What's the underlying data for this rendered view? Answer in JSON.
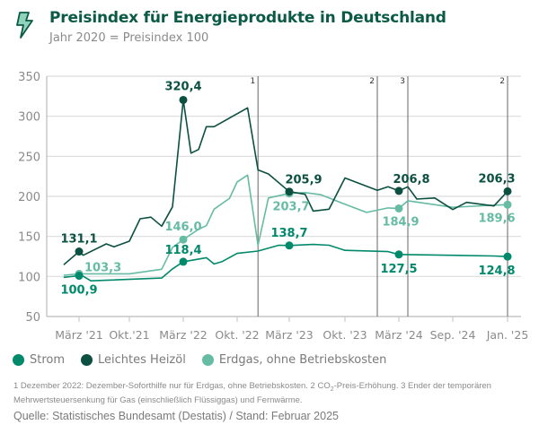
{
  "header": {
    "icon": "lightning-bolt-icon",
    "title": "Preisindex für Energieprodukte in Deutschland",
    "subtitle": "Jahr 2020 = Preisindex 100"
  },
  "colors": {
    "title": "#0b5a45",
    "strom": "#00896b",
    "heizoel": "#0b5040",
    "erdgas": "#66bba3",
    "grid": "#dcdcdc",
    "text": "#8a8a8a"
  },
  "chart_data": {
    "type": "line",
    "title": "Preisindex für Energieprodukte in Deutschland",
    "subtitle": "Jahr 2020 = Preisindex 100",
    "xlabel": "",
    "ylabel": "",
    "ylim": [
      50,
      350
    ],
    "yticks": [
      "50",
      "100",
      "150",
      "200",
      "250",
      "300",
      "350"
    ],
    "grid": true,
    "legend_position": "bottom",
    "xticks": [
      {
        "date": "2021-03",
        "label": "März '21"
      },
      {
        "date": "2021-10",
        "label": "Okt.'21"
      },
      {
        "date": "2022-03",
        "label": "März '22"
      },
      {
        "date": "2022-10",
        "label": "Okt. '22"
      },
      {
        "date": "2023-03",
        "label": "März '23"
      },
      {
        "date": "2023-10",
        "label": "Okt. '23"
      },
      {
        "date": "2024-03",
        "label": "März '24"
      },
      {
        "date": "2024-09",
        "label": "Sep. '24"
      },
      {
        "date": "2025-01",
        "label": "Jan. '25"
      }
    ],
    "annotations": [
      {
        "date": "2022-12",
        "label": "1"
      },
      {
        "date": "2024-01",
        "label": "2"
      },
      {
        "date": "2024-04",
        "label": "3"
      },
      {
        "date": "2025-01",
        "label": "2"
      }
    ],
    "series": [
      {
        "name": "Strom",
        "key": "strom",
        "points": [
          [
            "2021-01",
            98.9
          ],
          [
            "2021-03",
            100.9
          ],
          [
            "2021-04",
            100.3
          ],
          [
            "2021-05",
            94.5
          ],
          [
            "2022-01",
            98.0
          ],
          [
            "2022-02",
            109.4
          ],
          [
            "2022-03",
            118.4
          ],
          [
            "2022-06",
            123.4
          ],
          [
            "2022-07",
            115.6
          ],
          [
            "2022-08",
            118.4
          ],
          [
            "2022-10",
            128.8
          ],
          [
            "2022-12",
            131.7
          ],
          [
            "2023-02",
            139.0
          ],
          [
            "2023-03",
            138.7
          ],
          [
            "2023-06",
            140.0
          ],
          [
            "2023-08",
            139.0
          ],
          [
            "2023-10",
            132.6
          ],
          [
            "2024-02",
            131.0
          ],
          [
            "2024-03",
            127.5
          ],
          [
            "2024-12",
            125.6
          ],
          [
            "2025-01",
            124.8
          ]
        ],
        "labels": [
          {
            "date": "2021-03",
            "value": 100.9,
            "text": "100,9"
          },
          {
            "date": "2022-03",
            "value": 118.4,
            "text": "118,4"
          },
          {
            "date": "2023-03",
            "value": 138.7,
            "text": "138,7"
          },
          {
            "date": "2024-03",
            "value": 127.5,
            "text": "127,5"
          },
          {
            "date": "2025-01",
            "value": 124.8,
            "text": "124,8"
          }
        ]
      },
      {
        "name": "Leichtes Heizöl",
        "key": "heizoel",
        "points": [
          [
            "2021-01",
            114.6
          ],
          [
            "2021-03",
            131.1
          ],
          [
            "2021-04",
            126.5
          ],
          [
            "2021-07",
            140.7
          ],
          [
            "2021-08",
            137.0
          ],
          [
            "2021-10",
            144.0
          ],
          [
            "2021-11",
            172.0
          ],
          [
            "2021-12",
            174.0
          ],
          [
            "2022-01",
            162.7
          ],
          [
            "2022-02",
            186.9
          ],
          [
            "2022-03",
            320.4
          ],
          [
            "2022-04",
            254.0
          ],
          [
            "2022-05",
            258.6
          ],
          [
            "2022-06",
            287.0
          ],
          [
            "2022-07",
            287.0
          ],
          [
            "2022-11",
            310.5
          ],
          [
            "2022-12",
            233.0
          ],
          [
            "2023-01",
            228.0
          ],
          [
            "2023-03",
            205.9
          ],
          [
            "2023-05",
            202.6
          ],
          [
            "2023-06",
            181.6
          ],
          [
            "2023-08",
            184.0
          ],
          [
            "2023-10",
            223.0
          ],
          [
            "2024-01",
            207.5
          ],
          [
            "2024-02",
            212.0
          ],
          [
            "2024-03",
            206.8
          ],
          [
            "2024-04",
            212.0
          ],
          [
            "2024-05",
            196.6
          ],
          [
            "2024-07",
            198.0
          ],
          [
            "2024-09",
            183.5
          ],
          [
            "2024-10",
            192.5
          ],
          [
            "2024-12",
            188.0
          ],
          [
            "2025-01",
            206.3
          ]
        ],
        "labels": [
          {
            "date": "2021-03",
            "value": 131.1,
            "text": "131,1"
          },
          {
            "date": "2022-03",
            "value": 320.4,
            "text": "320,4"
          },
          {
            "date": "2023-03",
            "value": 205.9,
            "text": "205,9"
          },
          {
            "date": "2024-03",
            "value": 206.8,
            "text": "206,8"
          },
          {
            "date": "2025-01",
            "value": 206.3,
            "text": "206,3"
          }
        ]
      },
      {
        "name": "Erdgas, ohne Betriebskosten",
        "key": "erdgas",
        "points": [
          [
            "2021-01",
            101.5
          ],
          [
            "2021-03",
            103.3
          ],
          [
            "2021-10",
            103.3
          ],
          [
            "2022-01",
            109.0
          ],
          [
            "2022-02",
            136.2
          ],
          [
            "2022-03",
            146.0
          ],
          [
            "2022-05",
            159.0
          ],
          [
            "2022-06",
            163.4
          ],
          [
            "2022-07",
            184.0
          ],
          [
            "2022-09",
            197.4
          ],
          [
            "2022-10",
            218.0
          ],
          [
            "2022-11",
            226.5
          ],
          [
            "2022-12",
            139.0
          ],
          [
            "2023-01",
            198.0
          ],
          [
            "2023-03",
            203.7
          ],
          [
            "2023-05",
            204.7
          ],
          [
            "2023-07",
            202.0
          ],
          [
            "2023-10",
            190.2
          ],
          [
            "2023-12",
            180.0
          ],
          [
            "2024-02",
            185.6
          ],
          [
            "2024-03",
            184.9
          ],
          [
            "2024-04",
            194.5
          ],
          [
            "2024-09",
            186.3
          ],
          [
            "2024-12",
            189.0
          ],
          [
            "2025-01",
            189.6
          ]
        ],
        "labels": [
          {
            "date": "2021-03",
            "value": 103.3,
            "text": "103,3"
          },
          {
            "date": "2022-03",
            "value": 146.0,
            "text": "146,0"
          },
          {
            "date": "2023-03",
            "value": 203.7,
            "text": "203,7"
          },
          {
            "date": "2024-03",
            "value": 184.9,
            "text": "184,9"
          },
          {
            "date": "2025-01",
            "value": 189.6,
            "text": "189,6"
          }
        ]
      }
    ]
  },
  "legend": [
    {
      "label": "Strom",
      "key": "strom"
    },
    {
      "label": "Leichtes Heizöl",
      "key": "heizoel"
    },
    {
      "label": "Erdgas, ohne Betriebskosten",
      "key": "erdgas"
    }
  ],
  "footnote": {
    "part1": "1 Dezember 2022: Dezember-Soforthilfe nur für Erdgas, ohne Betriebskosten. 2 CO",
    "sub": "2",
    "part2": "-Preis-Erhöhung. 3 Ender der temporären Mehrwertsteuersenkung für Gas (einschließlich Flüssiggas) und Fernwärme."
  },
  "source": "Quelle: Statistisches Bundesamt (Destatis)  /  Stand: Februar 2025"
}
